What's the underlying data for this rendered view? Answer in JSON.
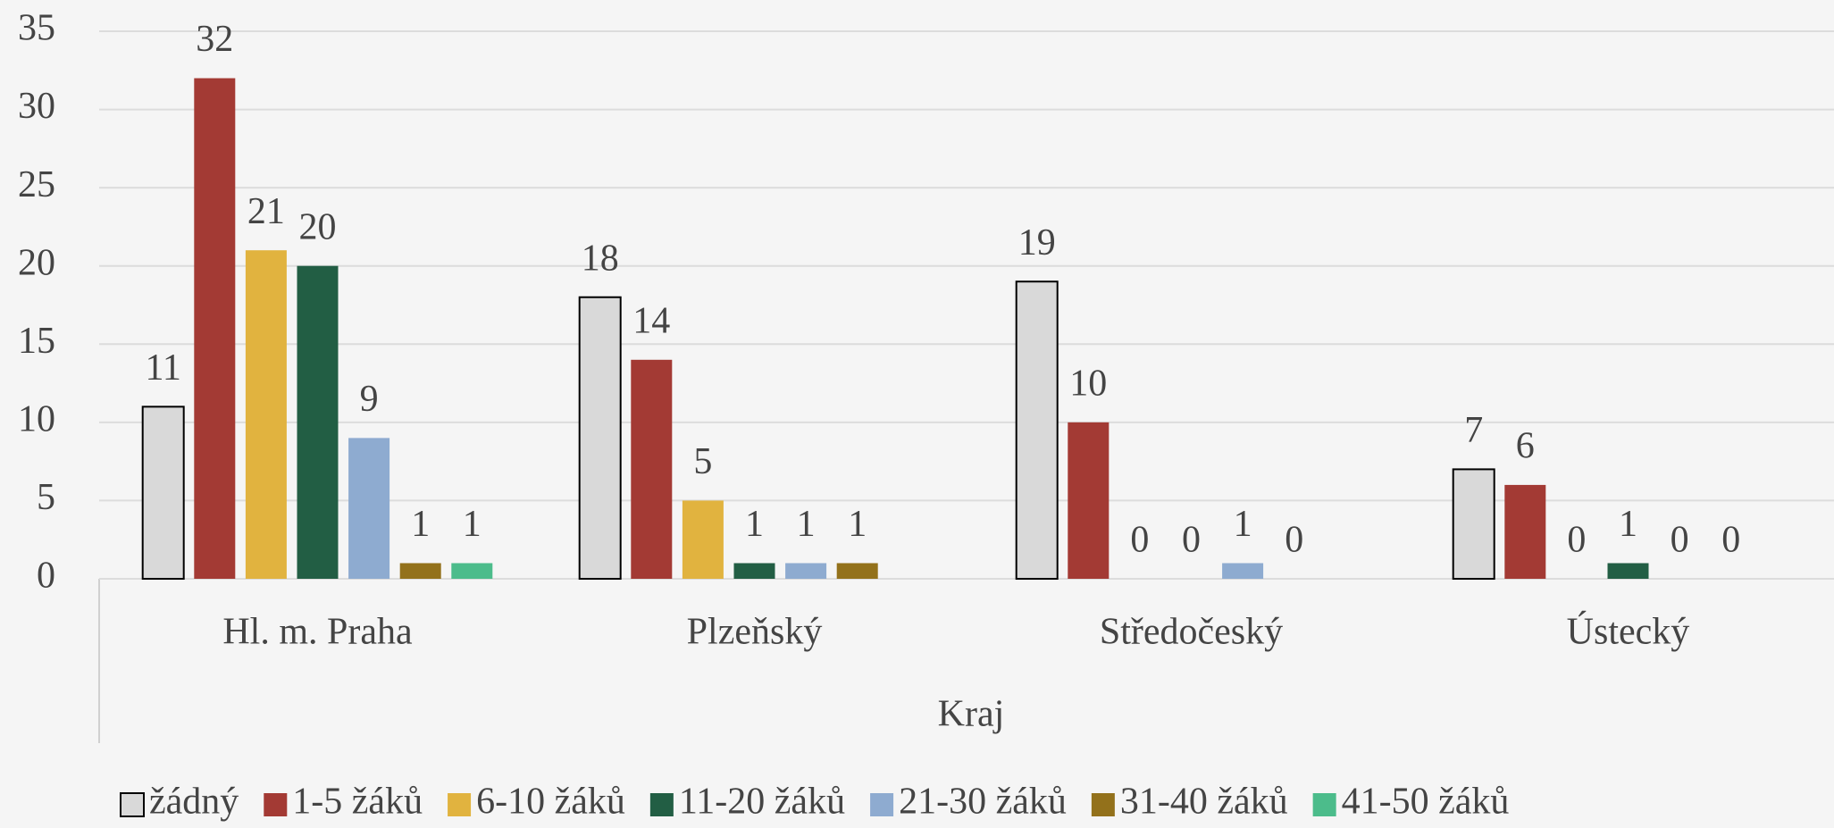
{
  "chart_data": {
    "type": "bar",
    "x_label": "Kraj",
    "categories": [
      "Hl. m. Praha",
      "Plzeňský",
      "Středočeský",
      "Ústecký"
    ],
    "series": [
      {
        "name": "žádný",
        "color": "#d9d9d9",
        "values": [
          11,
          18,
          19,
          7
        ]
      },
      {
        "name": "1-5 žáků",
        "color": "#a33a34",
        "values": [
          32,
          14,
          10,
          6
        ]
      },
      {
        "name": "6-10 žáků",
        "color": "#e1b33f",
        "values": [
          21,
          5,
          0,
          0
        ]
      },
      {
        "name": "11-20 žáků",
        "color": "#225e44",
        "values": [
          20,
          1,
          0,
          1
        ]
      },
      {
        "name": "21-30 žáků",
        "color": "#8eabd0",
        "values": [
          9,
          1,
          1,
          0
        ]
      },
      {
        "name": "31-40 žáků",
        "color": "#93711b",
        "values": [
          1,
          1,
          0,
          0
        ]
      },
      {
        "name": "41-50 žáků",
        "color": "#4cbc8b",
        "values": [
          1,
          null,
          null,
          null
        ]
      }
    ],
    "ylim": [
      0,
      35
    ],
    "yticks": [
      0,
      5,
      10,
      15,
      20,
      25,
      30,
      35
    ],
    "grid": true,
    "legend": "bottom"
  }
}
